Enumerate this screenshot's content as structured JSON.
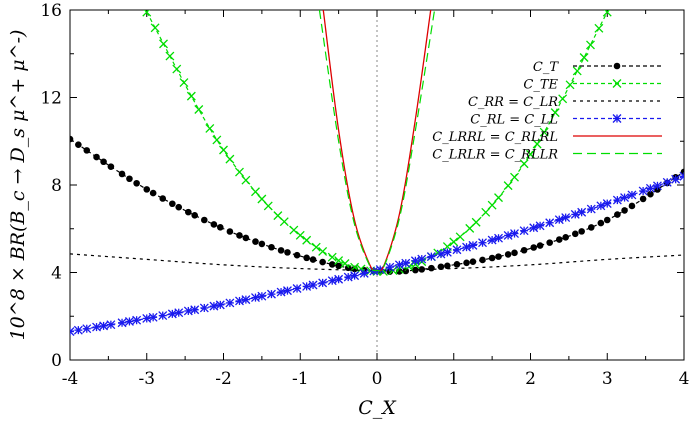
{
  "chart_data": {
    "type": "line",
    "xlabel": "C_X",
    "ylabel": "10^8 × BR(B_c → D_s μ^+ μ^-)",
    "xlim": [
      -4,
      4
    ],
    "ylim": [
      0,
      16
    ],
    "xticks": [
      "-4",
      "-3",
      "-2",
      "-1",
      "0",
      "1",
      "2",
      "3",
      "4"
    ],
    "yticks": [
      "0",
      "4",
      "8",
      "12",
      "16"
    ],
    "grid": false,
    "legend_position": "top-right",
    "series": [
      {
        "name": "C_T",
        "color": "#000000",
        "style": "dashed-with-dots",
        "x": [
          -4,
          -3,
          -2,
          -1,
          0,
          1,
          2,
          3,
          4
        ],
        "y": [
          10.1,
          7.8,
          6.0,
          4.75,
          4.05,
          4.35,
          5.1,
          6.4,
          8.6
        ]
      },
      {
        "name": "C_TE",
        "color": "#00dd00",
        "style": "dashed-with-crosses",
        "x": [
          -3,
          -2,
          -1,
          0,
          1,
          2,
          3
        ],
        "y": [
          15.9,
          9.6,
          5.7,
          4.05,
          5.4,
          9.4,
          15.9
        ]
      },
      {
        "name": "C_RR = C_LR",
        "color": "#000000",
        "style": "dotted",
        "x": [
          -4,
          -3,
          -2,
          -1,
          0,
          1,
          2,
          3,
          4
        ],
        "y": [
          4.85,
          4.6,
          4.35,
          4.18,
          4.1,
          4.18,
          4.35,
          4.6,
          4.8
        ]
      },
      {
        "name": "C_RL = C_LL",
        "color": "#1a1aee",
        "style": "dashed-with-stars",
        "x": [
          -4,
          -3,
          -2,
          -1,
          0,
          1,
          2,
          3,
          4
        ],
        "y": [
          1.3,
          1.9,
          2.55,
          3.3,
          4.1,
          5.0,
          6.0,
          7.15,
          8.4
        ]
      },
      {
        "name": "C_LRRL = C_RLRL",
        "color": "#dd0000",
        "style": "solid",
        "x": [
          -0.7,
          -0.5,
          -0.3,
          -0.1,
          0,
          0.1,
          0.3,
          0.5,
          0.7
        ],
        "y": [
          16,
          10.5,
          6.5,
          4.4,
          4.1,
          4.4,
          6.8,
          11.0,
          16
        ]
      },
      {
        "name": "C_LRLR = C_RLLR",
        "color": "#00dd00",
        "style": "long-dashed",
        "x": [
          -0.75,
          -0.5,
          -0.3,
          -0.1,
          0,
          0.1,
          0.3,
          0.5,
          0.75
        ],
        "y": [
          16,
          10.0,
          6.3,
          4.35,
          4.1,
          4.35,
          6.6,
          10.5,
          16
        ]
      }
    ]
  }
}
